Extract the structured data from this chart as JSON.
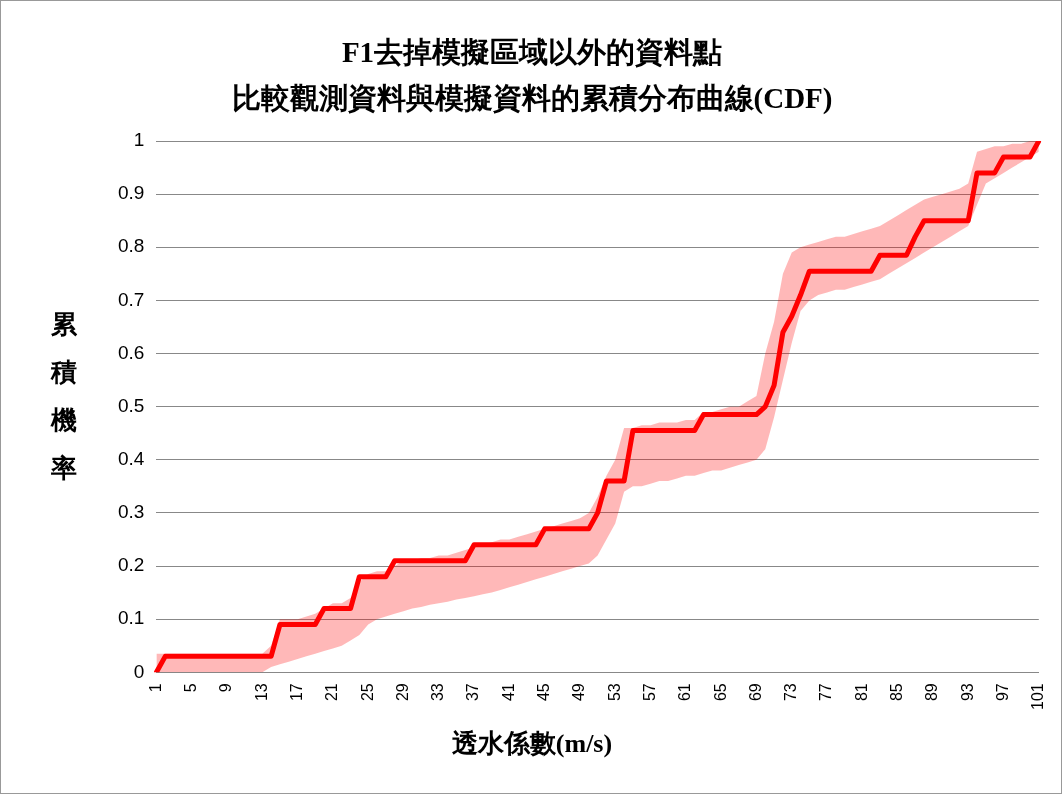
{
  "chart_data": {
    "type": "line",
    "title": "F1去掉模擬區域以外的資料點",
    "subtitle": "比較觀測資料與模擬資料的累積分布曲線(CDF)",
    "xlabel": "透水係數(m/s)",
    "ylabel": "累積機率",
    "categories": [
      "1",
      null,
      null,
      null,
      "5",
      null,
      null,
      null,
      "9",
      null,
      null,
      null,
      "13",
      null,
      null,
      null,
      "17",
      null,
      null,
      null,
      "21",
      null,
      null,
      null,
      "25",
      null,
      null,
      null,
      "29",
      null,
      null,
      null,
      "33",
      null,
      null,
      null,
      "37",
      null,
      null,
      null,
      "41",
      null,
      null,
      null,
      "45",
      null,
      null,
      null,
      "49",
      null,
      null,
      null,
      "53",
      null,
      null,
      null,
      "57",
      null,
      null,
      null,
      "61",
      null,
      null,
      null,
      "65",
      null,
      null,
      null,
      "69",
      null,
      null,
      null,
      "73",
      null,
      null,
      null,
      "77",
      null,
      null,
      null,
      "81",
      null,
      null,
      null,
      "85",
      null,
      null,
      null,
      "89",
      null,
      null,
      null,
      "93",
      null,
      null,
      null,
      "97",
      null,
      null,
      null,
      "101"
    ],
    "series": [
      {
        "color": "#ff0000",
        "values": [
          0,
          0.03,
          0.03,
          0.03,
          0.03,
          0.03,
          0.03,
          0.03,
          0.03,
          0.03,
          0.03,
          0.03,
          0.03,
          0.03,
          0.09,
          0.09,
          0.09,
          0.09,
          0.09,
          0.12,
          0.12,
          0.12,
          0.12,
          0.18,
          0.18,
          0.18,
          0.18,
          0.21,
          0.21,
          0.21,
          0.21,
          0.21,
          0.21,
          0.21,
          0.21,
          0.21,
          0.24,
          0.24,
          0.24,
          0.24,
          0.24,
          0.24,
          0.24,
          0.24,
          0.27,
          0.27,
          0.27,
          0.27,
          0.27,
          0.27,
          0.3,
          0.36,
          0.36,
          0.36,
          0.455,
          0.455,
          0.455,
          0.455,
          0.455,
          0.455,
          0.455,
          0.455,
          0.485,
          0.485,
          0.485,
          0.485,
          0.485,
          0.485,
          0.485,
          0.5,
          0.54,
          0.64,
          0.67,
          0.71,
          0.755,
          0.755,
          0.755,
          0.755,
          0.755,
          0.755,
          0.755,
          0.755,
          0.785,
          0.785,
          0.785,
          0.785,
          0.82,
          0.85,
          0.85,
          0.85,
          0.85,
          0.85,
          0.85,
          0.94,
          0.94,
          0.94,
          0.97,
          0.97,
          0.97,
          0.97,
          1
        ],
        "lower": [
          0,
          0,
          0,
          0,
          0,
          0,
          0,
          0,
          0,
          0,
          0,
          0,
          0,
          0.01,
          0.015,
          0.02,
          0.025,
          0.03,
          0.035,
          0.04,
          0.045,
          0.05,
          0.06,
          0.07,
          0.09,
          0.1,
          0.105,
          0.11,
          0.115,
          0.12,
          0.123,
          0.127,
          0.13,
          0.133,
          0.137,
          0.14,
          0.143,
          0.147,
          0.15,
          0.155,
          0.16,
          0.165,
          0.17,
          0.175,
          0.18,
          0.185,
          0.19,
          0.195,
          0.2,
          0.205,
          0.22,
          0.25,
          0.28,
          0.34,
          0.35,
          0.35,
          0.355,
          0.36,
          0.36,
          0.365,
          0.37,
          0.37,
          0.375,
          0.38,
          0.38,
          0.385,
          0.39,
          0.395,
          0.4,
          0.42,
          0.48,
          0.55,
          0.62,
          0.68,
          0.7,
          0.71,
          0.715,
          0.72,
          0.72,
          0.725,
          0.73,
          0.735,
          0.74,
          0.75,
          0.76,
          0.77,
          0.78,
          0.79,
          0.8,
          0.81,
          0.82,
          0.83,
          0.84,
          0.88,
          0.92,
          0.93,
          0.94,
          0.95,
          0.96,
          0.97,
          0.98
        ],
        "upper": [
          0.035,
          0.035,
          0.035,
          0.035,
          0.035,
          0.035,
          0.035,
          0.035,
          0.035,
          0.035,
          0.035,
          0.035,
          0.035,
          0.05,
          0.1,
          0.1,
          0.1,
          0.105,
          0.11,
          0.12,
          0.13,
          0.13,
          0.14,
          0.17,
          0.185,
          0.19,
          0.19,
          0.2,
          0.21,
          0.21,
          0.215,
          0.215,
          0.22,
          0.22,
          0.225,
          0.23,
          0.235,
          0.24,
          0.245,
          0.25,
          0.25,
          0.255,
          0.26,
          0.265,
          0.27,
          0.275,
          0.28,
          0.285,
          0.29,
          0.3,
          0.33,
          0.37,
          0.4,
          0.46,
          0.46,
          0.465,
          0.465,
          0.47,
          0.47,
          0.47,
          0.475,
          0.475,
          0.49,
          0.49,
          0.495,
          0.5,
          0.5,
          0.51,
          0.52,
          0.6,
          0.66,
          0.75,
          0.79,
          0.8,
          0.805,
          0.81,
          0.815,
          0.82,
          0.82,
          0.825,
          0.83,
          0.835,
          0.84,
          0.85,
          0.86,
          0.87,
          0.88,
          0.89,
          0.895,
          0.9,
          0.905,
          0.91,
          0.92,
          0.98,
          0.985,
          0.99,
          0.99,
          0.995,
          0.995,
          1,
          1
        ]
      }
    ],
    "ylim": [
      0,
      1
    ],
    "yticks": [
      0,
      0.1,
      0.2,
      0.3,
      0.4,
      0.5,
      0.6,
      0.7,
      0.8,
      0.9,
      1
    ],
    "grid": "y",
    "legend": false,
    "marker": "none",
    "line_style": "solid"
  }
}
